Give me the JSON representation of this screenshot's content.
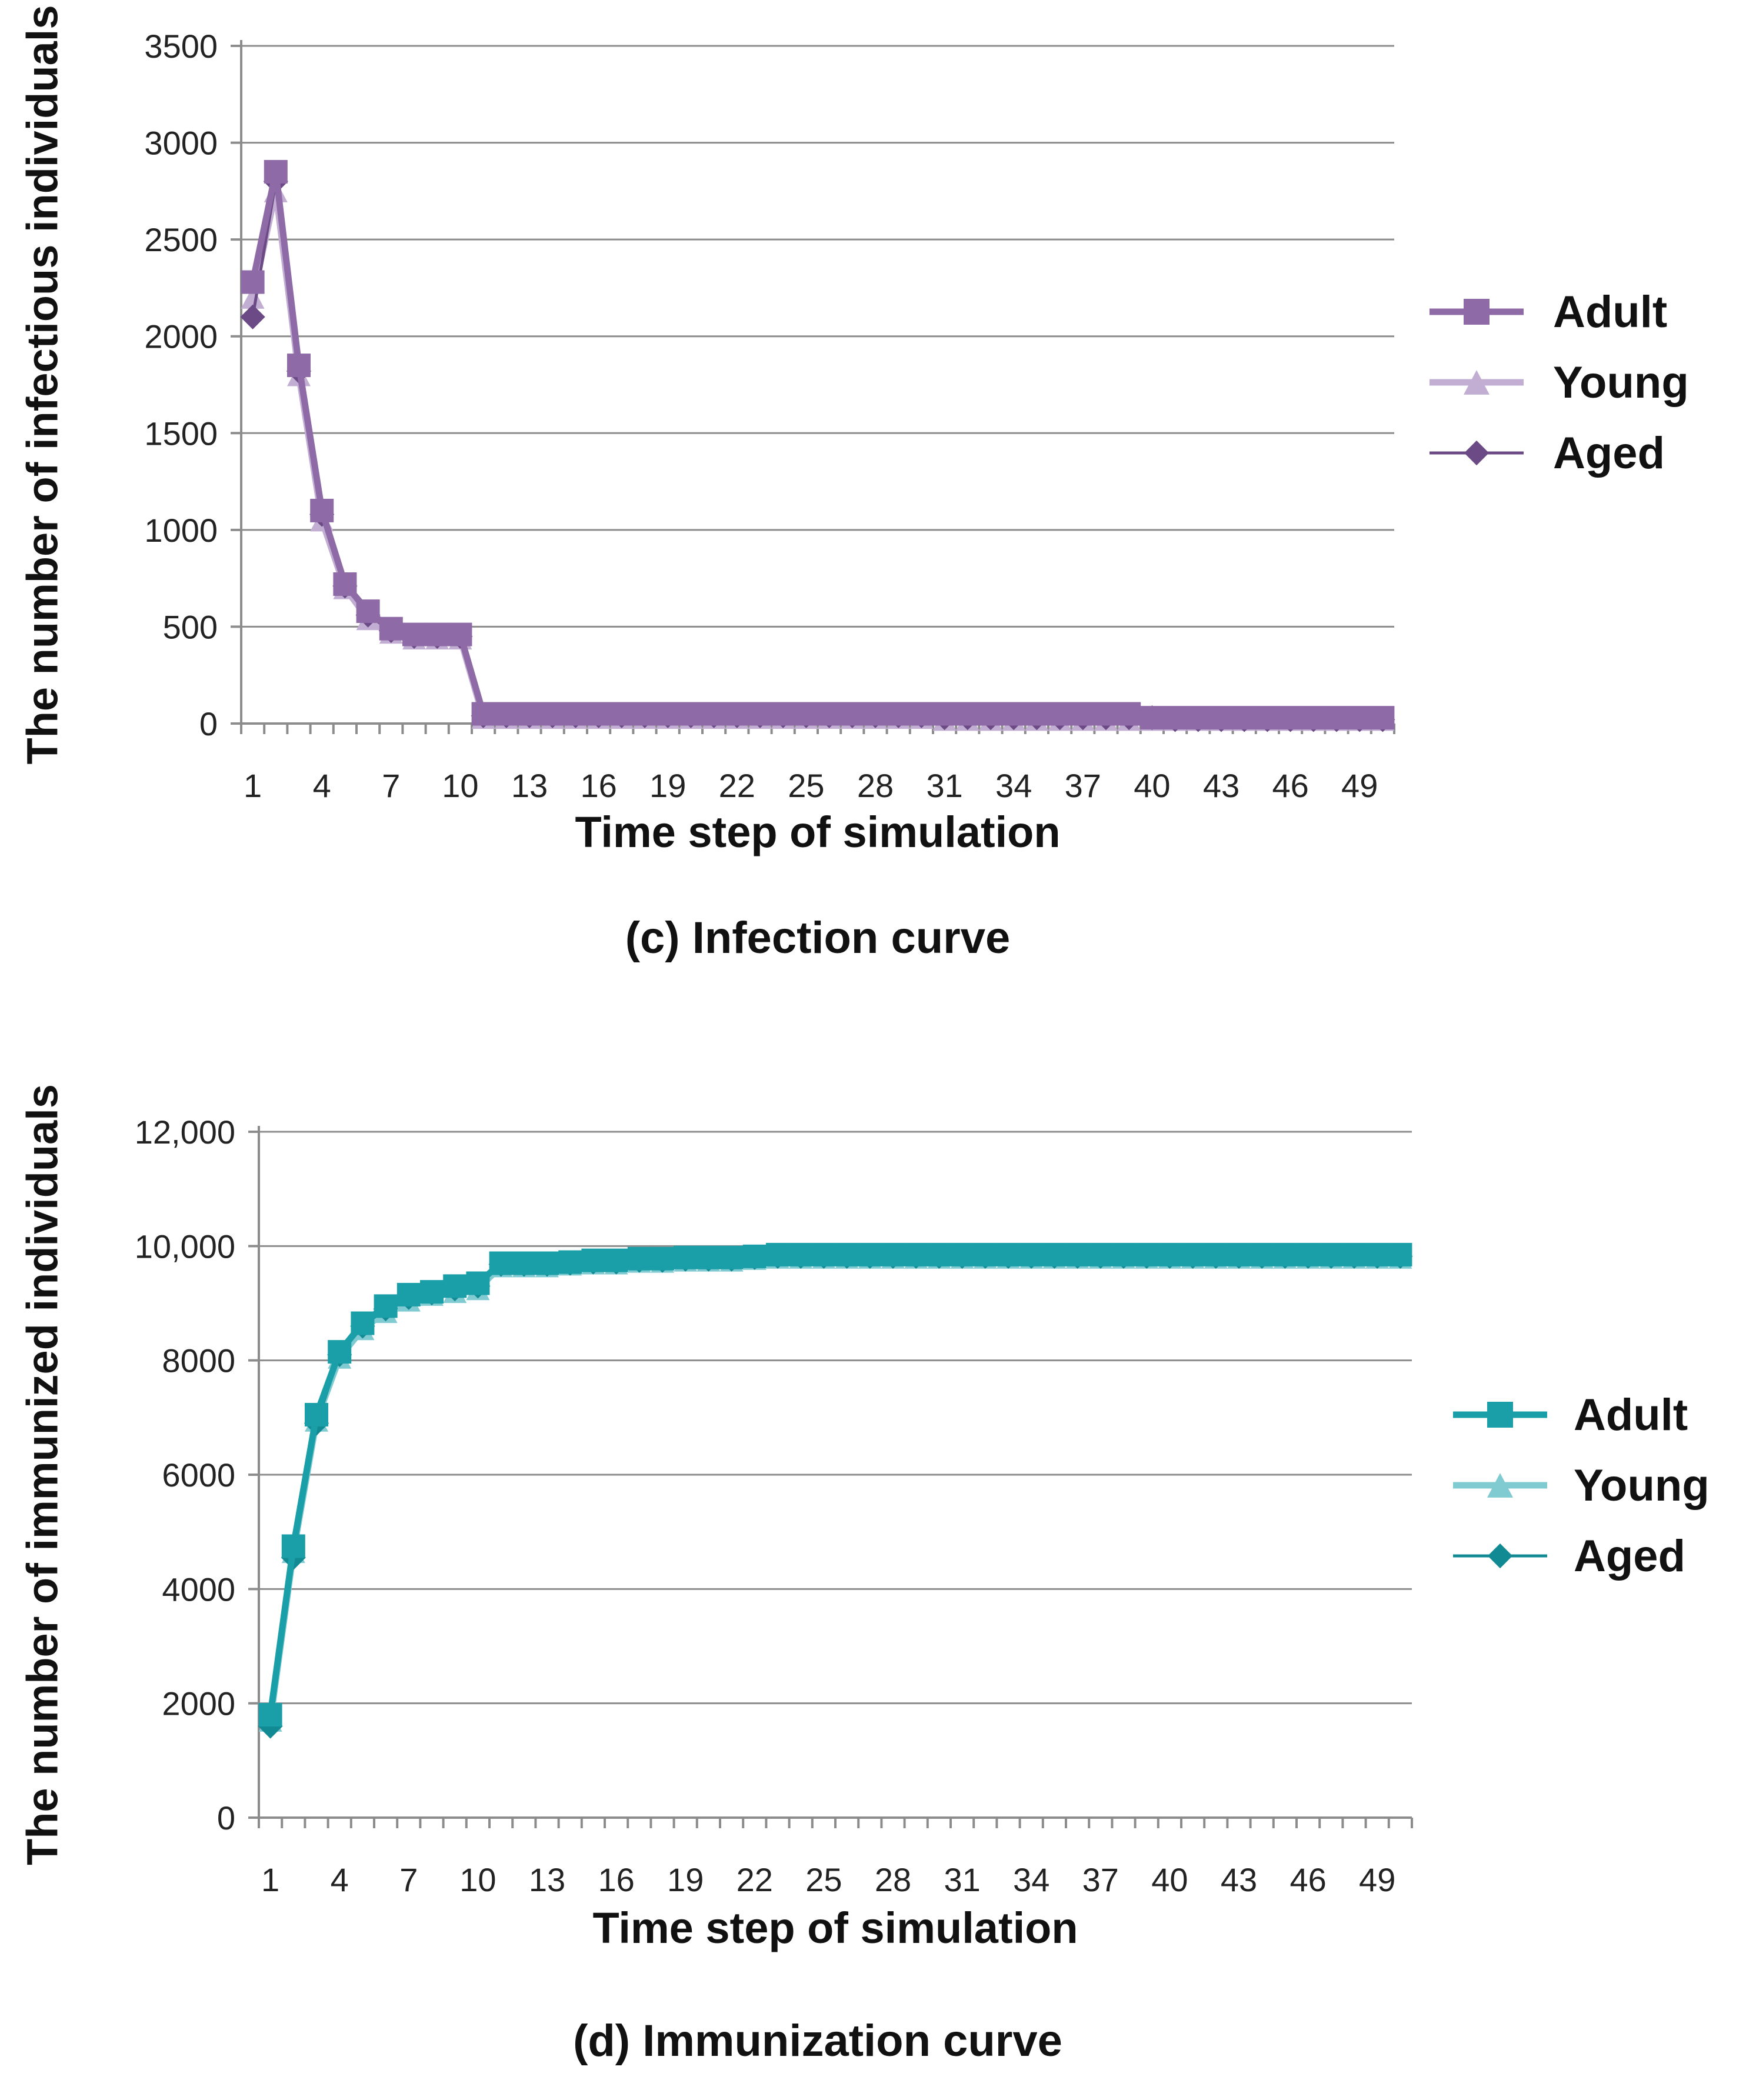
{
  "chart_data": [
    {
      "type": "line",
      "title": "",
      "caption": "(c) Infection curve",
      "xlabel": "Time step of simulation",
      "ylabel": "The number of infectious individuals",
      "x": [
        1,
        2,
        3,
        4,
        5,
        6,
        7,
        8,
        9,
        10,
        11,
        12,
        13,
        14,
        15,
        16,
        17,
        18,
        19,
        20,
        21,
        22,
        23,
        24,
        25,
        26,
        27,
        28,
        29,
        30,
        31,
        32,
        33,
        34,
        35,
        36,
        37,
        38,
        39,
        40,
        41,
        42,
        43,
        44,
        45,
        46,
        47,
        48,
        49,
        50
      ],
      "x_tick_labels": [
        "1",
        "4",
        "7",
        "10",
        "13",
        "16",
        "19",
        "22",
        "25",
        "28",
        "31",
        "34",
        "37",
        "40",
        "43",
        "46",
        "49"
      ],
      "y_tick_labels": [
        "0",
        "500",
        "1000",
        "1500",
        "2000",
        "2500",
        "3000",
        "3500"
      ],
      "ylim": [
        0,
        3500
      ],
      "grid": true,
      "legend_position": "right",
      "series": [
        {
          "name": "Adult",
          "color": "#8e6aa6",
          "marker": "square",
          "values": [
            2280,
            2850,
            1850,
            1100,
            720,
            580,
            490,
            460,
            460,
            460,
            50,
            50,
            50,
            50,
            50,
            50,
            50,
            50,
            50,
            50,
            50,
            50,
            50,
            50,
            50,
            50,
            50,
            50,
            50,
            50,
            50,
            50,
            50,
            50,
            50,
            50,
            50,
            50,
            50,
            30,
            30,
            30,
            30,
            30,
            30,
            30,
            30,
            30,
            30,
            30
          ]
        },
        {
          "name": "Young",
          "color": "#c2aed3",
          "marker": "triangle",
          "values": [
            2200,
            2750,
            1800,
            1050,
            700,
            540,
            470,
            440,
            440,
            440,
            30,
            30,
            30,
            30,
            30,
            30,
            30,
            30,
            30,
            30,
            30,
            30,
            30,
            30,
            30,
            30,
            30,
            30,
            30,
            30,
            20,
            20,
            20,
            20,
            20,
            20,
            20,
            20,
            20,
            20,
            20,
            20,
            20,
            20,
            20,
            20,
            20,
            20,
            20,
            20
          ]
        },
        {
          "name": "Aged",
          "color": "#6c4a86",
          "marker": "diamond",
          "values": [
            2100,
            2800,
            1820,
            1080,
            710,
            560,
            480,
            450,
            450,
            450,
            40,
            40,
            40,
            40,
            40,
            40,
            40,
            40,
            40,
            40,
            40,
            40,
            40,
            40,
            40,
            40,
            40,
            40,
            40,
            40,
            30,
            30,
            30,
            30,
            30,
            30,
            30,
            30,
            30,
            30,
            20,
            20,
            20,
            20,
            20,
            20,
            20,
            20,
            20,
            20
          ]
        }
      ]
    },
    {
      "type": "line",
      "title": "",
      "caption": "(d) Immunization curve",
      "xlabel": "Time step of simulation",
      "ylabel": "The number of immunized individuals",
      "x": [
        1,
        2,
        3,
        4,
        5,
        6,
        7,
        8,
        9,
        10,
        11,
        12,
        13,
        14,
        15,
        16,
        17,
        18,
        19,
        20,
        21,
        22,
        23,
        24,
        25,
        26,
        27,
        28,
        29,
        30,
        31,
        32,
        33,
        34,
        35,
        36,
        37,
        38,
        39,
        40,
        41,
        42,
        43,
        44,
        45,
        46,
        47,
        48,
        49,
        50
      ],
      "x_tick_labels": [
        "1",
        "4",
        "7",
        "10",
        "13",
        "16",
        "19",
        "22",
        "25",
        "28",
        "31",
        "34",
        "37",
        "40",
        "43",
        "46",
        "49"
      ],
      "y_tick_labels": [
        "0",
        "2000",
        "4000",
        "6000",
        "8000",
        "10,000",
        "12,000"
      ],
      "ylim": [
        0,
        12000
      ],
      "grid": true,
      "legend_position": "right",
      "series": [
        {
          "name": "Adult",
          "color": "#1a9fa8",
          "marker": "square",
          "values": [
            1800,
            4750,
            7050,
            8150,
            8650,
            8950,
            9150,
            9200,
            9300,
            9350,
            9700,
            9700,
            9700,
            9720,
            9750,
            9750,
            9780,
            9780,
            9800,
            9800,
            9800,
            9820,
            9850,
            9850,
            9850,
            9850,
            9850,
            9850,
            9850,
            9850,
            9850,
            9850,
            9850,
            9850,
            9850,
            9850,
            9850,
            9850,
            9850,
            9850,
            9850,
            9850,
            9850,
            9850,
            9850,
            9850,
            9850,
            9850,
            9850,
            9850
          ]
        },
        {
          "name": "Young",
          "color": "#7fcbd1",
          "marker": "triangle",
          "values": [
            1700,
            4650,
            6950,
            8050,
            8550,
            8850,
            9050,
            9150,
            9200,
            9250,
            9650,
            9650,
            9650,
            9680,
            9700,
            9700,
            9730,
            9730,
            9750,
            9750,
            9750,
            9780,
            9800,
            9800,
            9800,
            9800,
            9800,
            9800,
            9800,
            9800,
            9800,
            9800,
            9800,
            9800,
            9800,
            9800,
            9800,
            9800,
            9800,
            9800,
            9800,
            9800,
            9800,
            9800,
            9800,
            9800,
            9800,
            9800,
            9800,
            9800
          ]
        },
        {
          "name": "Aged",
          "color": "#128a93",
          "marker": "diamond",
          "values": [
            1600,
            4550,
            6900,
            8100,
            8600,
            8900,
            9100,
            9180,
            9250,
            9300,
            9680,
            9680,
            9680,
            9700,
            9720,
            9720,
            9750,
            9750,
            9770,
            9770,
            9770,
            9800,
            9820,
            9820,
            9820,
            9820,
            9820,
            9820,
            9820,
            9820,
            9820,
            9820,
            9820,
            9820,
            9820,
            9820,
            9820,
            9820,
            9820,
            9820,
            9820,
            9820,
            9820,
            9820,
            9820,
            9820,
            9820,
            9820,
            9820,
            9820
          ]
        }
      ]
    }
  ]
}
